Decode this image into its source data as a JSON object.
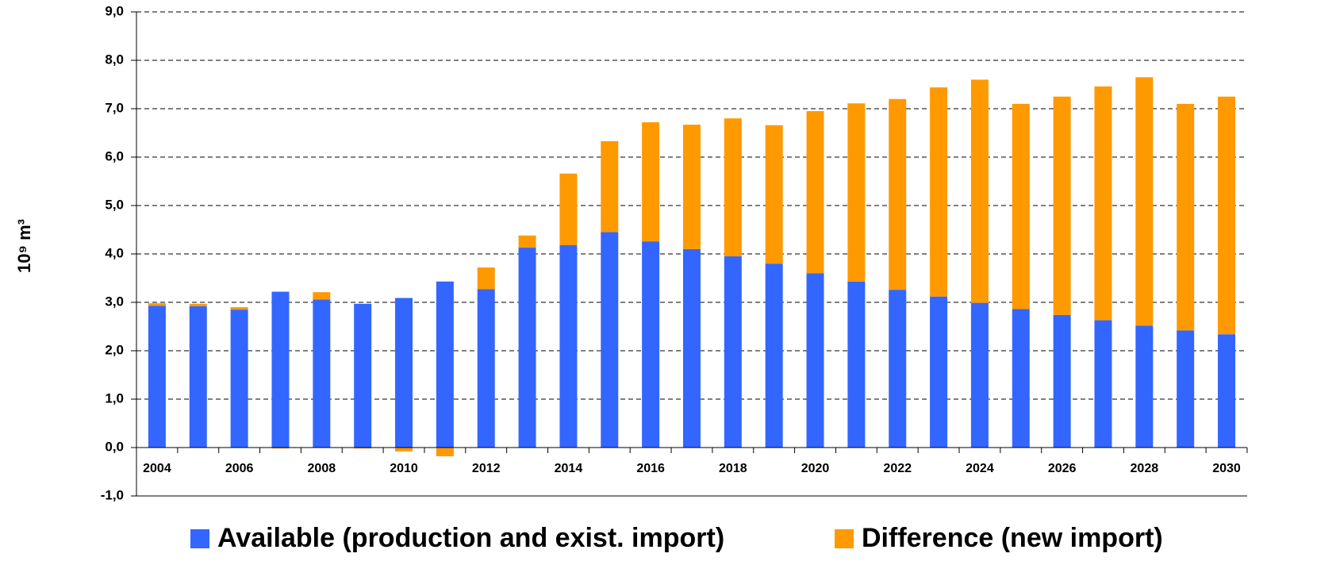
{
  "chart_data": {
    "type": "stacked_bar",
    "ylabel": "10⁹ m³",
    "categories": [
      "2004",
      null,
      "2006",
      null,
      "2008",
      null,
      "2010",
      null,
      "2012",
      null,
      "2014",
      null,
      "2016",
      null,
      "2018",
      null,
      "2020",
      null,
      "2022",
      null,
      "2024",
      null,
      "2026",
      null,
      "2028",
      null,
      "2030"
    ],
    "series": [
      {
        "name": "Available (production and exist. import)",
        "color": "#3366ff",
        "values": [
          2.93,
          2.92,
          2.85,
          3.22,
          3.06,
          2.97,
          3.09,
          3.43,
          3.27,
          4.13,
          4.18,
          4.45,
          4.26,
          4.1,
          3.95,
          3.8,
          3.6,
          3.43,
          3.26,
          3.12,
          2.99,
          2.86,
          2.74,
          2.63,
          2.52,
          2.42,
          2.34
        ]
      },
      {
        "name": "Difference (new import)",
        "color": "#ff9900",
        "values": [
          0.05,
          0.05,
          0.05,
          -0.02,
          0.15,
          -0.02,
          -0.08,
          -0.18,
          0.45,
          0.25,
          1.48,
          1.88,
          2.46,
          2.57,
          2.85,
          2.86,
          3.35,
          3.68,
          3.94,
          4.32,
          4.61,
          4.24,
          4.51,
          4.83,
          5.13,
          4.68,
          4.91
        ]
      }
    ],
    "ylim": [
      -1,
      9
    ],
    "yticks": [
      {
        "value": -1,
        "label": "-1,0"
      },
      {
        "value": 0,
        "label": "0,0"
      },
      {
        "value": 1,
        "label": "1,0"
      },
      {
        "value": 2,
        "label": "2,0"
      },
      {
        "value": 3,
        "label": "3,0"
      },
      {
        "value": 4,
        "label": "4,0"
      },
      {
        "value": 5,
        "label": "5,0"
      },
      {
        "value": 6,
        "label": "6,0"
      },
      {
        "value": 7,
        "label": "7,0"
      },
      {
        "value": 8,
        "label": "8,0"
      },
      {
        "value": 9,
        "label": "9,0"
      }
    ],
    "grid": true,
    "legend": "bottom"
  }
}
